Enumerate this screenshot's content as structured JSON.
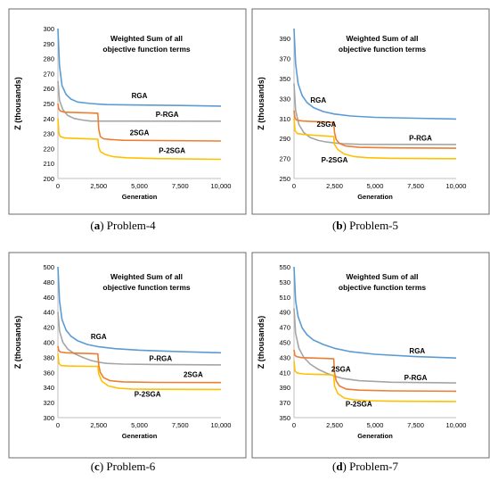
{
  "chart_data": [
    {
      "type": "line",
      "panel_letter": "(a)",
      "panel_name": "Problem-4",
      "title": "Weighted Sum of all objective function terms",
      "xlabel": "Generation",
      "ylabel": "Z (thousands)",
      "xlim": [
        0,
        10000
      ],
      "ylim": [
        200,
        300
      ],
      "xticks": [
        "0",
        "2,500",
        "5,000",
        "7,500",
        "10,000"
      ],
      "yticks": [
        "200",
        "210",
        "220",
        "230",
        "240",
        "250",
        "260",
        "270",
        "280",
        "290",
        "300"
      ],
      "grid": false,
      "series": [
        {
          "name": "RGA",
          "color": "#5b9bd5",
          "x": [
            0,
            100,
            250,
            500,
            800,
            1200,
            2000,
            2500,
            3000,
            5000,
            7500,
            10000
          ],
          "y": [
            300,
            275,
            262,
            256,
            253,
            251,
            250,
            249.6,
            249.3,
            249,
            248.7,
            248.3
          ]
        },
        {
          "name": "P-RGA",
          "color": "#a5a5a5",
          "x": [
            0,
            100,
            300,
            600,
            1000,
            1500,
            2000,
            10000
          ],
          "y": [
            265,
            252,
            246,
            242,
            240,
            239,
            238.3,
            238.2
          ]
        },
        {
          "name": "2SGA",
          "color": "#ed7d31",
          "x": [
            0,
            50,
            150,
            400,
            1000,
            1800,
            2450,
            2500,
            2600,
            2800,
            3200,
            4000,
            6000,
            10000
          ],
          "y": [
            250,
            246.5,
            245,
            244.2,
            244,
            243.8,
            243.5,
            233,
            228,
            226.5,
            226,
            225.5,
            225.3,
            225
          ]
        },
        {
          "name": "P-2SGA",
          "color": "#ffc000",
          "x": [
            0,
            60,
            150,
            400,
            1000,
            1800,
            2450,
            2500,
            2600,
            2900,
            3400,
            4200,
            6000,
            10000
          ],
          "y": [
            240,
            230,
            228,
            227,
            226.7,
            226.4,
            226.2,
            221,
            218,
            216,
            214.5,
            213.8,
            213.3,
            212.8
          ]
        }
      ],
      "labels": [
        {
          "text": "RGA",
          "x": 5000,
          "y": 253.5
        },
        {
          "text": "P-RGA",
          "x": 6700,
          "y": 241
        },
        {
          "text": "2SGA",
          "x": 5000,
          "y": 229
        },
        {
          "text": "P-2SGA",
          "x": 7000,
          "y": 217
        }
      ]
    },
    {
      "type": "line",
      "panel_letter": "(b)",
      "panel_name": "Problem-5",
      "title": "Weighted Sum of all objective function terms",
      "xlabel": "Generation",
      "ylabel": "Z (thousands)",
      "xlim": [
        0,
        10000
      ],
      "ylim": [
        250,
        400
      ],
      "xticks": [
        "0",
        "2,500",
        "5,000",
        "7,500",
        "10,000"
      ],
      "yticks": [
        "250",
        "270",
        "290",
        "310",
        "330",
        "350",
        "370",
        "390"
      ],
      "grid": false,
      "series": [
        {
          "name": "RGA",
          "color": "#5b9bd5",
          "x": [
            0,
            100,
            250,
            500,
            800,
            1200,
            1800,
            2500,
            3500,
            5000,
            7500,
            10000
          ],
          "y": [
            400,
            365,
            345,
            333,
            326,
            321,
            317,
            314.5,
            312.5,
            311.2,
            310.3,
            309.5
          ]
        },
        {
          "name": "P-RGA",
          "color": "#a5a5a5",
          "x": [
            0,
            100,
            300,
            600,
            1000,
            1500,
            2000,
            2500,
            3000,
            4000,
            10000
          ],
          "y": [
            345,
            318,
            304,
            296,
            291,
            288,
            286.5,
            285.5,
            284.8,
            284.2,
            284
          ]
        },
        {
          "name": "2SGA",
          "color": "#ed7d31",
          "x": [
            0,
            50,
            150,
            500,
            1200,
            2000,
            2450,
            2500,
            2600,
            2800,
            3200,
            4000,
            6000,
            10000
          ],
          "y": [
            318,
            311,
            308.5,
            307.5,
            307,
            306.5,
            306,
            296,
            289,
            285,
            282.5,
            281.2,
            280.6,
            280.3
          ]
        },
        {
          "name": "P-2SGA",
          "color": "#ffc000",
          "x": [
            0,
            60,
            200,
            600,
            1200,
            2000,
            2450,
            2500,
            2700,
            3100,
            3700,
            4500,
            6000,
            10000
          ],
          "y": [
            310,
            298,
            295,
            294,
            293.3,
            292.5,
            292,
            284,
            279,
            274.5,
            272,
            270.8,
            270.2,
            269.8
          ]
        }
      ],
      "labels": [
        {
          "text": "RGA",
          "x": 1500,
          "y": 326
        },
        {
          "text": "2SGA",
          "x": 2000,
          "y": 302
        },
        {
          "text": "P-RGA",
          "x": 7800,
          "y": 288
        },
        {
          "text": "P-2SGA",
          "x": 2500,
          "y": 266
        }
      ]
    },
    {
      "type": "line",
      "panel_letter": "(c)",
      "panel_name": "Problem-6",
      "title": "Weighted Sum of all objective function terms",
      "xlabel": "Generation",
      "ylabel": "Z (thousands)",
      "xlim": [
        0,
        10000
      ],
      "ylim": [
        300,
        500
      ],
      "xticks": [
        "0",
        "2,500",
        "5,000",
        "7,500",
        "10,000"
      ],
      "yticks": [
        "300",
        "320",
        "340",
        "360",
        "380",
        "400",
        "420",
        "440",
        "460",
        "480",
        "500"
      ],
      "grid": false,
      "series": [
        {
          "name": "RGA",
          "color": "#5b9bd5",
          "x": [
            0,
            100,
            250,
            500,
            800,
            1200,
            1800,
            2500,
            3500,
            5000,
            7500,
            10000
          ],
          "y": [
            500,
            455,
            430,
            416,
            408,
            402,
            397,
            394,
            391.5,
            389.5,
            387.5,
            386
          ]
        },
        {
          "name": "P-RGA",
          "color": "#a5a5a5",
          "x": [
            0,
            100,
            300,
            600,
            1000,
            1500,
            2000,
            2500,
            3000,
            4000,
            6000,
            10000
          ],
          "y": [
            440,
            415,
            400,
            391,
            385,
            380,
            376,
            373.5,
            372,
            371,
            370.5,
            370
          ]
        },
        {
          "name": "2SGA",
          "color": "#ed7d31",
          "x": [
            0,
            50,
            150,
            500,
            1200,
            2000,
            2450,
            2500,
            2600,
            2800,
            3200,
            4000,
            6000,
            10000
          ],
          "y": [
            395,
            389,
            387,
            386,
            385.5,
            385,
            384.5,
            370,
            360,
            353,
            349,
            347.5,
            346.8,
            346.5
          ]
        },
        {
          "name": "P-2SGA",
          "color": "#ffc000",
          "x": [
            0,
            60,
            200,
            600,
            1200,
            2000,
            2450,
            2500,
            2700,
            3100,
            3700,
            4500,
            6000,
            10000
          ],
          "y": [
            385,
            372,
            369,
            368.5,
            368.3,
            368.1,
            368,
            358,
            348,
            342,
            339,
            338,
            337.6,
            337.4
          ]
        }
      ],
      "labels": [
        {
          "text": "RGA",
          "x": 2500,
          "y": 404
        },
        {
          "text": "P-RGA",
          "x": 6300,
          "y": 375
        },
        {
          "text": "2SGA",
          "x": 8300,
          "y": 354
        },
        {
          "text": "P-2SGA",
          "x": 5500,
          "y": 328
        }
      ]
    },
    {
      "type": "line",
      "panel_letter": "(d)",
      "panel_name": "Problem-7",
      "title": "Weighted Sum of all objective function terms",
      "xlabel": "Generation",
      "ylabel": "Z (thousands)",
      "xlim": [
        0,
        10000
      ],
      "ylim": [
        350,
        550
      ],
      "xticks": [
        "0",
        "2,500",
        "5,000",
        "7,500",
        "10,000"
      ],
      "yticks": [
        "350",
        "370",
        "390",
        "410",
        "430",
        "450",
        "470",
        "490",
        "510",
        "530",
        "550"
      ],
      "grid": false,
      "series": [
        {
          "name": "RGA",
          "color": "#5b9bd5",
          "x": [
            0,
            100,
            250,
            500,
            800,
            1200,
            1800,
            2500,
            3500,
            5000,
            7500,
            10000
          ],
          "y": [
            550,
            505,
            484,
            469,
            460,
            453,
            447,
            442,
            437.5,
            434,
            431,
            429
          ]
        },
        {
          "name": "P-RGA",
          "color": "#a5a5a5",
          "x": [
            0,
            100,
            300,
            600,
            1000,
            1500,
            2000,
            2500,
            3000,
            4000,
            6000,
            10000
          ],
          "y": [
            495,
            462,
            442,
            430,
            421,
            414,
            409,
            405,
            402,
            399,
            397,
            396
          ]
        },
        {
          "name": "2SGA",
          "color": "#ed7d31",
          "x": [
            0,
            50,
            150,
            500,
            1200,
            2000,
            2450,
            2500,
            2600,
            2800,
            3200,
            4000,
            6000,
            10000
          ],
          "y": [
            440,
            433,
            431,
            429.5,
            429,
            428.5,
            428,
            410,
            399,
            392,
            388,
            386.5,
            385.5,
            385
          ]
        },
        {
          "name": "P-2SGA",
          "color": "#ffc000",
          "x": [
            0,
            60,
            200,
            600,
            1200,
            2000,
            2450,
            2500,
            2700,
            3100,
            3700,
            4500,
            6000,
            10000
          ],
          "y": [
            425,
            412,
            409,
            408,
            407.5,
            407,
            406.5,
            392,
            382,
            376,
            373.5,
            372.5,
            371.8,
            371.3
          ]
        }
      ],
      "labels": [
        {
          "text": "RGA",
          "x": 7600,
          "y": 435
        },
        {
          "text": "2SGA",
          "x": 2900,
          "y": 411
        },
        {
          "text": "P-RGA",
          "x": 7500,
          "y": 400
        },
        {
          "text": "P-2SGA",
          "x": 4000,
          "y": 365
        }
      ]
    }
  ]
}
